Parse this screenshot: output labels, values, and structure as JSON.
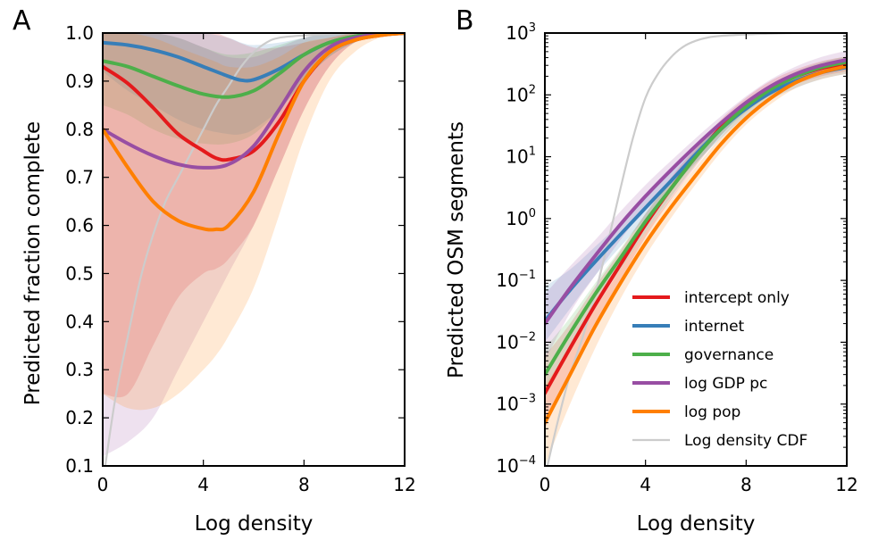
{
  "panels": [
    {
      "letter": "A",
      "xlabel": "Log density",
      "ylabel": "Predicted fraction complete",
      "xticks": [
        "0",
        "4",
        "8",
        "12"
      ],
      "yticks": [
        "0.1",
        "0.2",
        "0.3",
        "0.4",
        "0.5",
        "0.6",
        "0.7",
        "0.8",
        "0.9",
        "1.0"
      ]
    },
    {
      "letter": "B",
      "xlabel": "Log density",
      "ylabel": "Predicted OSM segments",
      "xticks": [
        "0",
        "4",
        "8",
        "12"
      ],
      "yticks": [
        {
          "base": "10",
          "exp": "−4"
        },
        {
          "base": "10",
          "exp": "−3"
        },
        {
          "base": "10",
          "exp": "−2"
        },
        {
          "base": "10",
          "exp": "−1"
        },
        {
          "base": "10",
          "exp": "0"
        },
        {
          "base": "10",
          "exp": "1"
        },
        {
          "base": "10",
          "exp": "2"
        },
        {
          "base": "10",
          "exp": "3"
        }
      ]
    }
  ],
  "legend": {
    "placement": "lower-right of panel B",
    "items": [
      {
        "label": "intercept only",
        "color": "#e41a1c"
      },
      {
        "label": "internet",
        "color": "#377eb8"
      },
      {
        "label": "governance",
        "color": "#4daf4a"
      },
      {
        "label": "log GDP pc",
        "color": "#984ea3"
      },
      {
        "label": "log pop",
        "color": "#ff7f00"
      },
      {
        "label": "Log density CDF",
        "color": "#cccccc"
      }
    ]
  },
  "chart_data": [
    {
      "type": "line",
      "panel": "A",
      "xlabel": "Log density",
      "ylabel": "Predicted fraction complete",
      "xlim": [
        0,
        12
      ],
      "ylim": [
        0.1,
        1.0
      ],
      "yscale": "linear",
      "grid": false,
      "series": [
        {
          "name": "intercept only",
          "color": "#e41a1c",
          "x": [
            0,
            1,
            2,
            3,
            4,
            4.5,
            5,
            6,
            7,
            8,
            9,
            10,
            11,
            12
          ],
          "y": [
            0.93,
            0.895,
            0.845,
            0.79,
            0.755,
            0.74,
            0.737,
            0.755,
            0.815,
            0.9,
            0.96,
            0.985,
            0.995,
            1.0
          ],
          "band_low": [
            0.25,
            0.25,
            0.35,
            0.45,
            0.5,
            0.51,
            0.53,
            0.6,
            0.72,
            0.84,
            0.93,
            0.98,
            0.995,
            1.0
          ],
          "band_high": [
            1.0,
            1.0,
            1.0,
            1.0,
            1.0,
            1.0,
            0.99,
            0.97,
            0.97,
            0.98,
            0.99,
            1.0,
            1.0,
            1.0
          ]
        },
        {
          "name": "internet",
          "color": "#377eb8",
          "x": [
            0,
            1,
            2,
            3,
            4,
            5,
            5.5,
            6,
            7,
            8,
            9,
            10,
            11,
            12
          ],
          "y": [
            0.98,
            0.975,
            0.965,
            0.95,
            0.93,
            0.91,
            0.902,
            0.903,
            0.925,
            0.955,
            0.98,
            0.993,
            0.998,
            1.0
          ],
          "band_low": [
            0.92,
            0.88,
            0.85,
            0.82,
            0.8,
            0.79,
            0.79,
            0.8,
            0.84,
            0.9,
            0.95,
            0.98,
            0.995,
            1.0
          ],
          "band_high": [
            1.0,
            1.0,
            1.0,
            1.0,
            1.0,
            0.99,
            0.98,
            0.975,
            0.98,
            0.99,
            1.0,
            1.0,
            1.0,
            1.0
          ]
        },
        {
          "name": "governance",
          "color": "#4daf4a",
          "x": [
            0,
            1,
            2,
            3,
            4,
            5,
            6,
            7,
            8,
            9,
            10,
            11,
            12
          ],
          "y": [
            0.942,
            0.93,
            0.91,
            0.89,
            0.873,
            0.867,
            0.88,
            0.915,
            0.955,
            0.98,
            0.993,
            0.998,
            1.0
          ],
          "band_low": [
            0.85,
            0.83,
            0.8,
            0.78,
            0.77,
            0.77,
            0.79,
            0.84,
            0.9,
            0.95,
            0.98,
            0.995,
            1.0
          ],
          "band_high": [
            1.0,
            1.0,
            1.0,
            0.99,
            0.97,
            0.955,
            0.96,
            0.975,
            0.99,
            1.0,
            1.0,
            1.0,
            1.0
          ]
        },
        {
          "name": "log GDP pc",
          "color": "#984ea3",
          "x": [
            0,
            1,
            2,
            3,
            4,
            5,
            6,
            7,
            8,
            9,
            10,
            11,
            12
          ],
          "y": [
            0.8,
            0.77,
            0.745,
            0.727,
            0.72,
            0.727,
            0.765,
            0.84,
            0.92,
            0.97,
            0.99,
            0.997,
            1.0
          ],
          "band_low": [
            0.12,
            0.15,
            0.2,
            0.3,
            0.4,
            0.5,
            0.6,
            0.72,
            0.84,
            0.93,
            0.98,
            0.995,
            1.0
          ],
          "band_high": [
            1.0,
            1.0,
            1.0,
            0.99,
            0.97,
            0.95,
            0.95,
            0.97,
            0.99,
            1.0,
            1.0,
            1.0,
            1.0
          ]
        },
        {
          "name": "log pop",
          "color": "#ff7f00",
          "x": [
            0,
            1,
            2,
            3,
            4,
            4.5,
            5,
            6,
            7,
            8,
            9,
            10,
            11,
            12
          ],
          "y": [
            0.8,
            0.72,
            0.65,
            0.61,
            0.593,
            0.592,
            0.6,
            0.67,
            0.79,
            0.9,
            0.96,
            0.985,
            0.995,
            1.0
          ],
          "band_low": [
            0.25,
            0.22,
            0.22,
            0.25,
            0.3,
            0.33,
            0.37,
            0.47,
            0.62,
            0.78,
            0.9,
            0.96,
            0.99,
            1.0
          ],
          "band_high": [
            1.0,
            1.0,
            0.99,
            0.97,
            0.95,
            0.94,
            0.93,
            0.93,
            0.95,
            0.98,
            0.99,
            1.0,
            1.0,
            1.0
          ]
        },
        {
          "name": "Log density CDF",
          "color": "#cccccc",
          "x": [
            0.1,
            0.5,
            1,
            1.5,
            2,
            2.5,
            3,
            3.5,
            4,
            4.5,
            5,
            5.5,
            6,
            6.5,
            7,
            8,
            9,
            10,
            12
          ],
          "y": [
            0.1,
            0.24,
            0.37,
            0.49,
            0.58,
            0.65,
            0.7,
            0.75,
            0.8,
            0.85,
            0.89,
            0.93,
            0.96,
            0.98,
            0.99,
            0.995,
            0.998,
            1.0,
            1.0
          ]
        }
      ]
    },
    {
      "type": "line",
      "panel": "B",
      "xlabel": "Log density",
      "ylabel": "Predicted OSM segments",
      "xlim": [
        0,
        12
      ],
      "ylim": [
        0.0001,
        1000
      ],
      "yscale": "log",
      "grid": false,
      "legend": "lower right",
      "series": [
        {
          "name": "intercept only",
          "color": "#e41a1c",
          "x": [
            0,
            1,
            2,
            3,
            4,
            5,
            6,
            7,
            8,
            9,
            10,
            11,
            12
          ],
          "y": [
            0.0015,
            0.008,
            0.04,
            0.18,
            0.8,
            3,
            10,
            30,
            70,
            130,
            200,
            270,
            320
          ],
          "band_low": [
            0.0004,
            0.003,
            0.02,
            0.1,
            0.5,
            2,
            7,
            22,
            55,
            100,
            150,
            200,
            240
          ],
          "band_high": [
            0.006,
            0.02,
            0.08,
            0.3,
            1.2,
            4.5,
            14,
            40,
            90,
            170,
            260,
            350,
            420
          ]
        },
        {
          "name": "internet",
          "color": "#377eb8",
          "x": [
            0,
            1,
            2,
            3,
            4,
            5,
            6,
            7,
            8,
            9,
            10,
            11,
            12
          ],
          "y": [
            0.022,
            0.07,
            0.2,
            0.55,
            1.5,
            4,
            11,
            28,
            60,
            110,
            170,
            230,
            280
          ],
          "band_low": [
            0.01,
            0.035,
            0.12,
            0.35,
            1,
            3,
            8,
            20,
            45,
            85,
            130,
            180,
            220
          ],
          "band_high": [
            0.08,
            0.15,
            0.35,
            0.85,
            2.2,
            6,
            15,
            38,
            80,
            140,
            220,
            300,
            380
          ]
        },
        {
          "name": "governance",
          "color": "#4daf4a",
          "x": [
            0,
            1,
            2,
            3,
            4,
            5,
            6,
            7,
            8,
            9,
            10,
            11,
            12
          ],
          "y": [
            0.003,
            0.014,
            0.06,
            0.23,
            0.9,
            3,
            10,
            28,
            65,
            125,
            200,
            280,
            340
          ],
          "band_low": [
            0.0015,
            0.008,
            0.04,
            0.15,
            0.6,
            2.2,
            7.5,
            22,
            52,
            100,
            160,
            220,
            270
          ],
          "band_high": [
            0.008,
            0.025,
            0.09,
            0.32,
            1.2,
            4,
            13,
            35,
            80,
            150,
            240,
            340,
            420
          ]
        },
        {
          "name": "log GDP pc",
          "color": "#984ea3",
          "x": [
            0,
            1,
            2,
            3,
            4,
            5,
            6,
            7,
            8,
            9,
            10,
            11,
            12
          ],
          "y": [
            0.02,
            0.075,
            0.25,
            0.8,
            2.3,
            6,
            15,
            35,
            75,
            140,
            220,
            300,
            370
          ],
          "band_low": [
            0.005,
            0.03,
            0.12,
            0.45,
            1.5,
            4.2,
            11,
            27,
            60,
            110,
            170,
            230,
            280
          ],
          "band_high": [
            0.06,
            0.17,
            0.45,
            1.3,
            3.5,
            8.5,
            20,
            45,
            95,
            180,
            290,
            410,
            520
          ]
        },
        {
          "name": "log pop",
          "color": "#ff7f00",
          "x": [
            0,
            1,
            2,
            3,
            4,
            5,
            6,
            7,
            8,
            9,
            10,
            11,
            12
          ],
          "y": [
            0.0005,
            0.003,
            0.018,
            0.09,
            0.4,
            1.5,
            5,
            16,
            42,
            90,
            160,
            230,
            290
          ],
          "band_low": [
            0.0001,
            0.001,
            0.008,
            0.05,
            0.25,
            1,
            3.6,
            12,
            33,
            72,
            130,
            180,
            220
          ],
          "band_high": [
            0.002,
            0.008,
            0.035,
            0.15,
            0.6,
            2.1,
            6.8,
            21,
            55,
            115,
            200,
            300,
            380
          ]
        },
        {
          "name": "Log density CDF",
          "color": "#cccccc",
          "x": [
            0.1,
            0.5,
            1,
            1.5,
            2,
            2.5,
            3,
            3.5,
            4,
            4.5,
            5,
            5.5,
            6,
            6.5,
            7,
            8,
            9,
            10,
            12
          ],
          "y": [
            0.0001,
            0.0005,
            0.003,
            0.012,
            0.06,
            0.4,
            3,
            20,
            90,
            220,
            400,
            600,
            750,
            850,
            900,
            950,
            980,
            1000,
            1000
          ]
        }
      ]
    }
  ]
}
